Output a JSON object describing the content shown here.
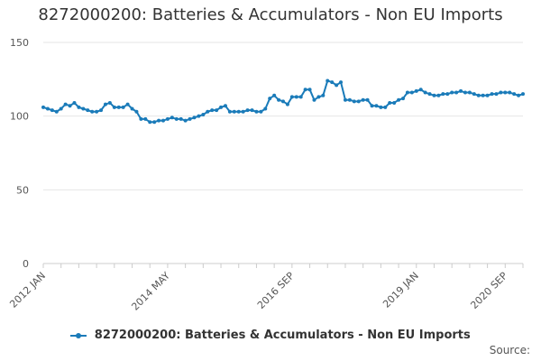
{
  "title": "8272000200: Batteries & Accumulators - Non EU Imports",
  "source_label": "Source:",
  "colors": {
    "series": "#1a7bb9",
    "grid": "#e6e6e6",
    "axis": "#cccccc"
  },
  "chart_data": {
    "type": "line",
    "title": "8272000200: Batteries & Accumulators - Non EU Imports",
    "xlabel": "",
    "ylabel": "",
    "ylim": [
      0,
      150
    ],
    "yticks": [
      0,
      50,
      100,
      150
    ],
    "start_month": "2012 JAN",
    "x_tick_labels": [
      {
        "label": "2012 JAN",
        "index": 0
      },
      {
        "label": "2014 MAY",
        "index": 28
      },
      {
        "label": "2016 SEP",
        "index": 56
      },
      {
        "label": "2019 JAN",
        "index": 84
      },
      {
        "label": "2020 SEP",
        "index": 104
      }
    ],
    "grid": true,
    "legend_position": "bottom",
    "series": [
      {
        "name": "8272000200: Batteries & Accumulators - Non EU Imports",
        "values": [
          106,
          105,
          104,
          103,
          105,
          108,
          107,
          109,
          106,
          105,
          104,
          103,
          103,
          104,
          108,
          109,
          106,
          106,
          106,
          108,
          105,
          103,
          98,
          98,
          96,
          96,
          97,
          97,
          98,
          99,
          98,
          98,
          97,
          98,
          99,
          100,
          101,
          103,
          104,
          104,
          106,
          107,
          103,
          103,
          103,
          103,
          104,
          104,
          103,
          103,
          105,
          112,
          114,
          111,
          110,
          108,
          113,
          113,
          113,
          118,
          118,
          111,
          113,
          114,
          124,
          123,
          121,
          123,
          111,
          111,
          110,
          110,
          111,
          111,
          107,
          107,
          106,
          106,
          109,
          109,
          111,
          112,
          116,
          116,
          117,
          118,
          116,
          115,
          114,
          114,
          115,
          115,
          116,
          116,
          117,
          116,
          116,
          115,
          114,
          114,
          114,
          115,
          115,
          116,
          116,
          116,
          115,
          114,
          115
        ]
      }
    ]
  }
}
